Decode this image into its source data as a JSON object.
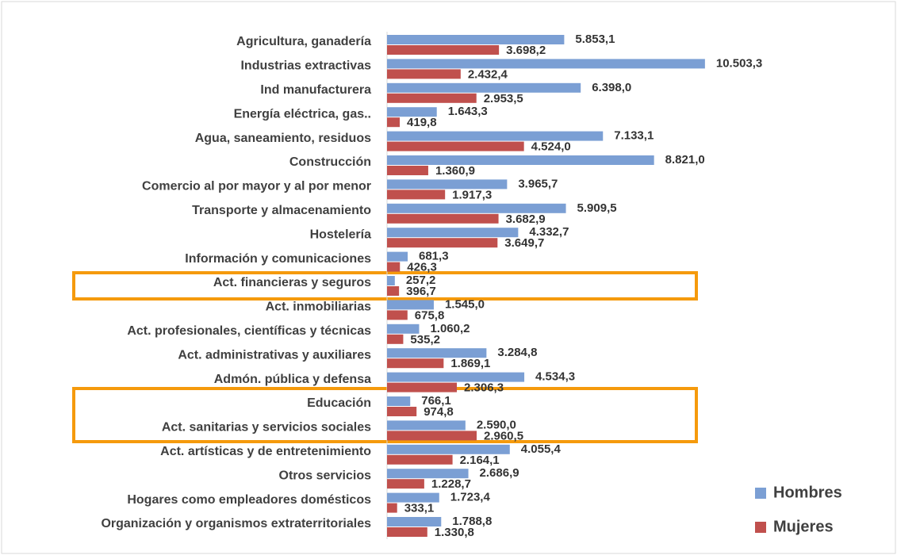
{
  "chart_data": {
    "type": "barh",
    "categories": [
      "Agricultura, ganadería",
      "Industrias extractivas",
      "Ind manufacturera",
      "Energía eléctrica, gas..",
      "Agua, saneamiento, residuos",
      "Construcción",
      "Comercio al por mayor y al por menor",
      "Transporte y almacenamiento",
      "Hostelería",
      "Información y comunicaciones",
      "Act. financieras y seguros",
      "Act. inmobiliarias",
      "Act. profesionales, científicas y técnicas",
      "Act. administrativas y auxiliares",
      "Admón. pública y defensa",
      "Educación",
      "Act. sanitarias y servicios sociales",
      "Act. artísticas y de entretenimiento",
      "Otros servicios",
      "Hogares como empleadores domésticos",
      "Organización y organismos extraterritoriales"
    ],
    "series": [
      {
        "name": "Hombres",
        "color": "#7b9fd4",
        "values": [
          5853.1,
          10503.3,
          6398.0,
          1643.3,
          7133.1,
          8821.0,
          3965.7,
          5909.5,
          4332.7,
          681.3,
          257.2,
          1545.0,
          1060.2,
          3284.8,
          4534.3,
          766.1,
          2590.0,
          4055.4,
          2686.9,
          1723.4,
          1788.8
        ],
        "value_labels": [
          "5.853,1",
          "10.503,3",
          "6.398,0",
          "1.643,3",
          "7.133,1",
          "8.821,0",
          "3.965,7",
          "5.909,5",
          "4.332,7",
          "681,3",
          "257,2",
          "1.545,0",
          "1.060,2",
          "3.284,8",
          "4.534,3",
          "766,1",
          "2.590,0",
          "4.055,4",
          "2.686,9",
          "1.723,4",
          "1.788,8"
        ]
      },
      {
        "name": "Mujeres",
        "color": "#c0504d",
        "values": [
          3698.2,
          2432.4,
          2953.5,
          419.8,
          4524.0,
          1360.9,
          1917.3,
          3682.9,
          3649.7,
          426.3,
          396.7,
          675.8,
          535.2,
          1869.1,
          2306.3,
          974.8,
          2960.5,
          2164.1,
          1228.7,
          333.1,
          1330.8
        ],
        "value_labels": [
          "3.698,2",
          "2.432,4",
          "2.953,5",
          "419,8",
          "4.524,0",
          "1.360,9",
          "1.917,3",
          "3.682,9",
          "3.649,7",
          "426,3",
          "396,7",
          "675,8",
          "535,2",
          "1.869,1",
          "2.306,3",
          "974,8",
          "2.960,5",
          "2.164,1",
          "1.228,7",
          "333,1",
          "1.330,8"
        ]
      }
    ],
    "xlim": [
      0,
      12000
    ],
    "legend": "lower right"
  }
}
